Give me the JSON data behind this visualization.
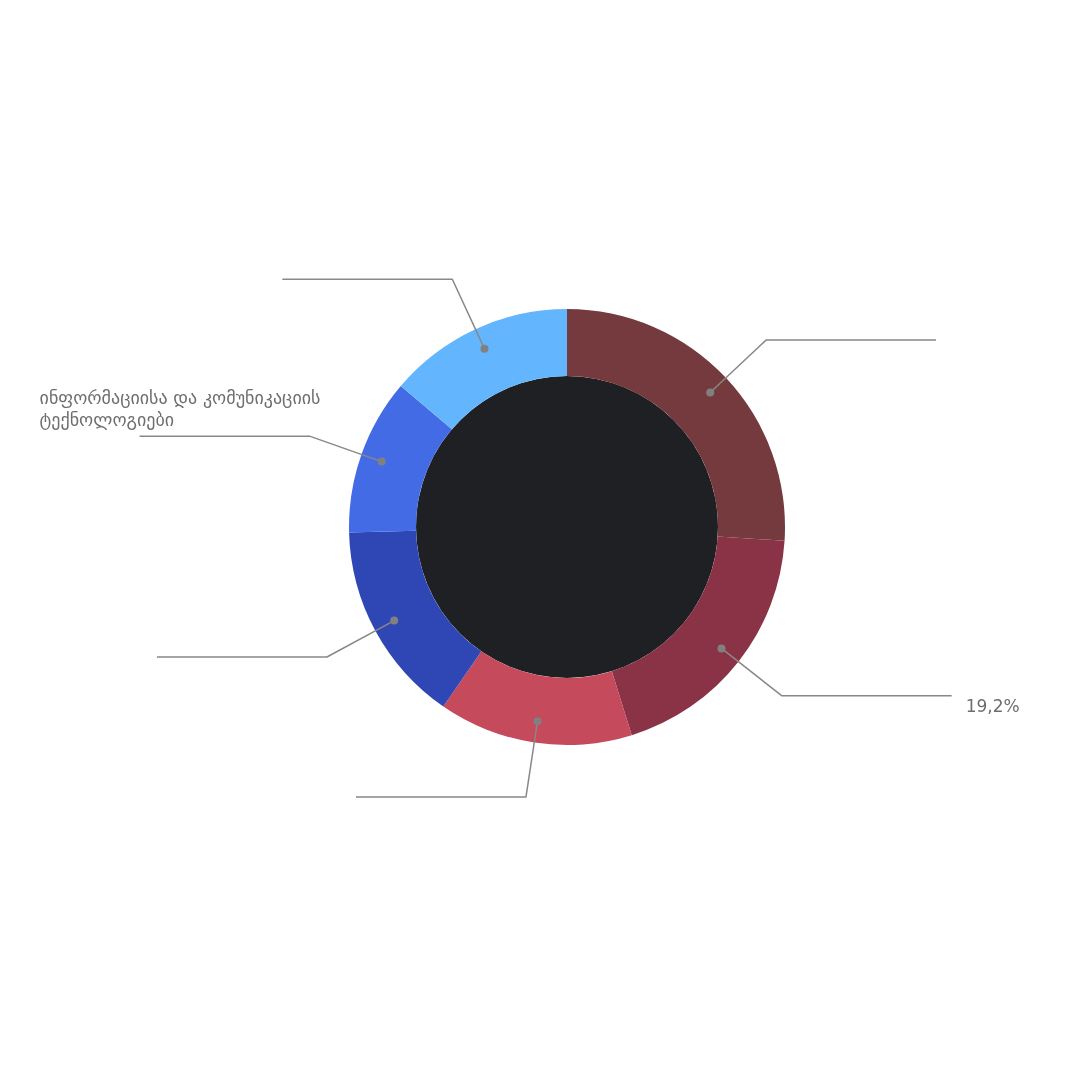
{
  "chart_data": {
    "type": "donut",
    "categories": [
      null,
      null,
      null,
      null,
      "ინფორმაციისა და კომუნიკაციის ტექნოლოგიები",
      null
    ],
    "values": [
      26.0,
      19.2,
      14.4,
      15.0,
      11.6,
      13.8
    ],
    "colors": [
      "#743a3e",
      "#8a3346",
      "#c44a5c",
      "#2f47b5",
      "#436be6",
      "#63b6fd"
    ],
    "value_labels": [
      null,
      "19,2%",
      null,
      null,
      null,
      null
    ]
  }
}
